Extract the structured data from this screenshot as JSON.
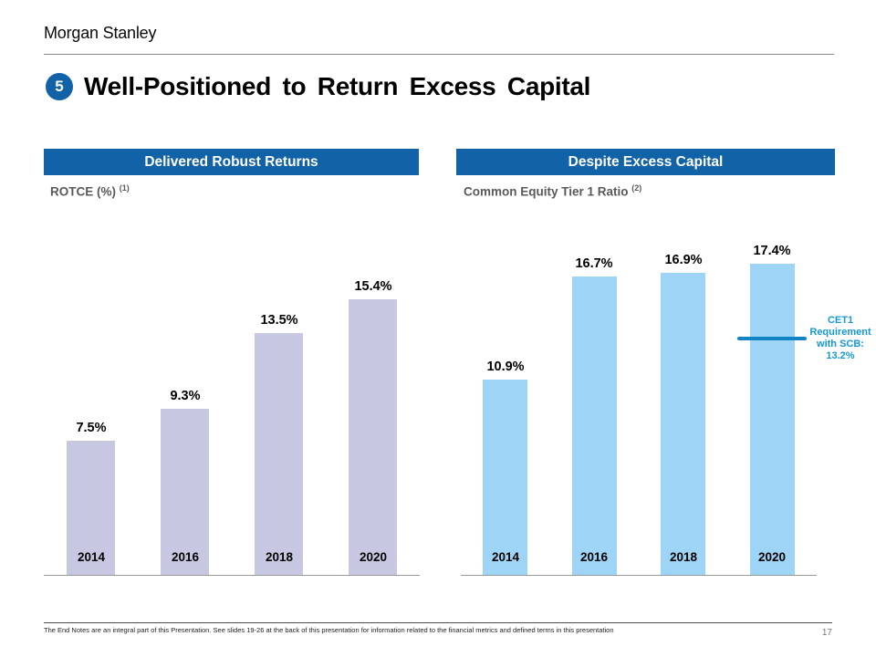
{
  "brand": {
    "logo": "Morgan Stanley"
  },
  "slide": {
    "badge": "5",
    "title": "Well-Positioned to Return Excess Capital",
    "page_number": "17"
  },
  "footer": {
    "note": "The End Notes are an integral part of this Presentation.  See slides 19-26 at the back of this presentation  for information related to the financial metrics and defined terms in this presentation"
  },
  "colors": {
    "header_bar": "#1262A8",
    "badge_blue": "#1262A8",
    "left_bar": "#C7C7E2",
    "right_bar": "#9ED4F6",
    "reference_line": "#1284C4",
    "reference_text": "#1598D2",
    "axis": "#999999"
  },
  "chart_data": [
    {
      "type": "bar",
      "title": "Delivered Robust Returns",
      "subtitle": "ROTCE (%)",
      "subtitle_note": "(1)",
      "categories": [
        "2014",
        "2016",
        "2018",
        "2020"
      ],
      "values": [
        7.5,
        9.3,
        13.5,
        15.4
      ],
      "value_labels": [
        "7.5%",
        "9.3%",
        "13.5%",
        "15.4%"
      ],
      "bar_color": "#C7C7E2",
      "xlabel": "",
      "ylabel": "ROTCE (%)",
      "ylim": [
        0,
        18
      ],
      "grid": false,
      "legend": false
    },
    {
      "type": "bar",
      "title": "Despite Excess Capital",
      "subtitle": "Common Equity Tier 1 Ratio",
      "subtitle_note": "(2)",
      "categories": [
        "2014",
        "2016",
        "2018",
        "2020"
      ],
      "values": [
        10.9,
        16.7,
        16.9,
        17.4
      ],
      "value_labels": [
        "10.9%",
        "16.7%",
        "16.9%",
        "17.4%"
      ],
      "bar_color": "#9ED4F6",
      "xlabel": "",
      "ylabel": "Common Equity Tier 1 Ratio (%)",
      "ylim": [
        0,
        18
      ],
      "grid": false,
      "legend": false,
      "reference_line": {
        "value": 13.2,
        "label_lines": [
          "CET1",
          "Requirement",
          "with SCB:",
          "13.2%"
        ],
        "label_text": "CET1 Requirement with SCB: 13.2%",
        "line_color": "#1284C4",
        "text_color": "#1598D2"
      }
    }
  ]
}
